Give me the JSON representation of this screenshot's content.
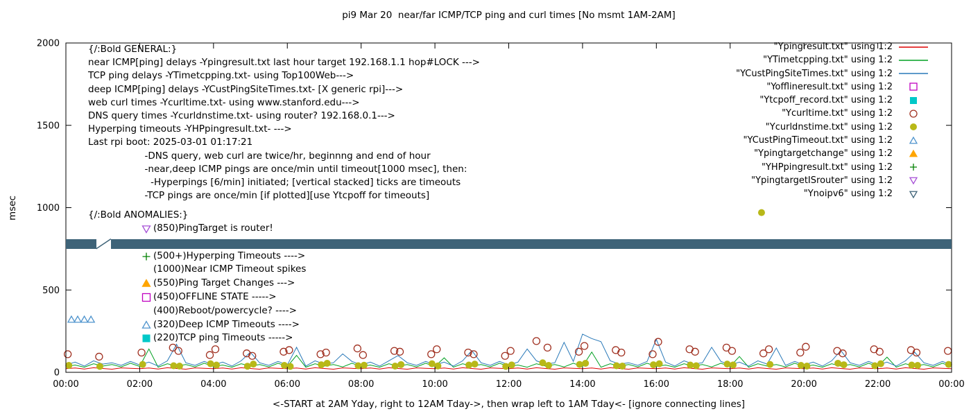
{
  "chart_data": {
    "type": "line",
    "title": "pi9 Mar 20  near/far ICMP/TCP ping and curl times [No msmt 1AM-2AM]",
    "xlabel": "<-START at 2AM Yday, right to 12AM Tday->, then wrap left to 1AM Tday<- [ignore connecting lines]",
    "ylabel": "msec",
    "x_range": [
      0,
      24
    ],
    "y_range": [
      0,
      2000
    ],
    "y_ticks": [
      0,
      500,
      1000,
      1500,
      2000
    ],
    "x_ticks": {
      "values": [
        0,
        2,
        4,
        6,
        8,
        10,
        12,
        14,
        16,
        18,
        20,
        22,
        24
      ],
      "labels": [
        "00:00",
        "02:00",
        "04:00",
        "06:00",
        "08:00",
        "10:00",
        "12:00",
        "14:00",
        "16:00",
        "18:00",
        "20:00",
        "22:00",
        "00:00"
      ]
    },
    "legend_position": "top-right",
    "series": [
      {
        "label": "\"Ypingresult.txt\" using 1:2",
        "type": "line",
        "color": "#dd0000",
        "values": [
          22,
          26,
          20,
          28,
          23,
          19,
          27,
          24,
          22,
          26,
          20,
          28,
          23,
          19,
          27,
          24,
          22,
          26,
          20,
          28,
          23,
          19,
          27,
          24,
          22,
          26,
          20,
          28,
          23,
          19,
          27,
          24,
          22,
          26,
          20,
          28,
          23,
          19,
          27,
          24,
          22,
          26,
          20,
          28,
          23,
          19,
          27,
          24,
          22,
          26,
          20,
          28,
          23,
          19,
          27,
          24,
          22,
          26,
          20,
          28,
          23,
          19,
          27,
          24,
          22,
          26,
          20,
          28,
          23,
          19,
          27,
          24,
          22,
          26,
          20,
          28,
          23,
          19,
          27,
          24,
          22,
          26,
          20,
          28,
          23,
          19,
          27,
          24,
          22,
          26,
          20,
          28,
          23,
          19,
          27,
          24,
          22
        ]
      },
      {
        "label": "\"YTimetcpping.txt\" using 1:2",
        "type": "line",
        "color": "#00a020",
        "values": [
          36,
          44,
          31,
          52,
          38,
          47,
          33,
          55,
          36,
          142,
          31,
          52,
          38,
          47,
          33,
          55,
          36,
          44,
          31,
          52,
          38,
          47,
          33,
          55,
          36,
          103,
          31,
          52,
          38,
          47,
          33,
          55,
          36,
          44,
          31,
          52,
          38,
          47,
          33,
          55,
          36,
          88,
          31,
          52,
          38,
          47,
          33,
          55,
          36,
          44,
          31,
          52,
          38,
          47,
          33,
          55,
          36,
          123,
          31,
          52,
          38,
          47,
          33,
          55,
          36,
          44,
          31,
          52,
          38,
          47,
          33,
          55,
          36,
          96,
          31,
          52,
          38,
          47,
          33,
          55,
          36,
          44,
          31,
          52,
          38,
          47,
          33,
          55,
          36,
          92,
          31,
          52,
          38,
          47,
          33,
          55,
          36
        ]
      },
      {
        "label": "\"YCustPingSiteTimes.txt\" using 1:2",
        "type": "line",
        "color": "#2878b8",
        "values": [
          45,
          62,
          38,
          70,
          50,
          58,
          42,
          66,
          45,
          62,
          38,
          70,
          170,
          58,
          42,
          66,
          45,
          62,
          38,
          70,
          122,
          58,
          42,
          66,
          45,
          152,
          38,
          70,
          50,
          58,
          112,
          66,
          45,
          62,
          38,
          70,
          102,
          58,
          42,
          66,
          45,
          62,
          38,
          70,
          132,
          58,
          42,
          66,
          45,
          62,
          142,
          70,
          50,
          58,
          182,
          66,
          232,
          205,
          186,
          70,
          50,
          58,
          42,
          66,
          200,
          62,
          38,
          70,
          50,
          58,
          152,
          66,
          45,
          62,
          38,
          70,
          50,
          148,
          42,
          66,
          45,
          62,
          38,
          70,
          132,
          58,
          42,
          66,
          45,
          62,
          38,
          70,
          122,
          58,
          42,
          66,
          45
        ]
      },
      {
        "label": "\"Yofflineresult.txt\" using 1:2",
        "type": "scatter",
        "marker": "square-open",
        "color": "#c000c0",
        "points": []
      },
      {
        "label": "\"Ytcpoff_record.txt\" using 1:2",
        "type": "scatter",
        "marker": "square-filled",
        "color": "#00c8c8",
        "points": []
      },
      {
        "label": "\"Ycurltime.txt\" using 1:2",
        "type": "scatter",
        "marker": "circle-open",
        "color": "#a03020",
        "points": [
          [
            0.05,
            110
          ],
          [
            0.9,
            95
          ],
          [
            2.05,
            120
          ],
          [
            2.9,
            150
          ],
          [
            3.05,
            130
          ],
          [
            3.9,
            105
          ],
          [
            4.05,
            140
          ],
          [
            4.9,
            115
          ],
          [
            5.05,
            100
          ],
          [
            5.9,
            125
          ],
          [
            6.05,
            135
          ],
          [
            6.9,
            110
          ],
          [
            7.05,
            120
          ],
          [
            7.9,
            145
          ],
          [
            8.05,
            105
          ],
          [
            8.9,
            130
          ],
          [
            9.05,
            125
          ],
          [
            9.9,
            110
          ],
          [
            10.05,
            140
          ],
          [
            10.9,
            120
          ],
          [
            11.05,
            110
          ],
          [
            11.9,
            100
          ],
          [
            12.05,
            130
          ],
          [
            12.75,
            190
          ],
          [
            13.05,
            150
          ],
          [
            13.9,
            125
          ],
          [
            14.05,
            160
          ],
          [
            14.9,
            135
          ],
          [
            15.05,
            120
          ],
          [
            15.9,
            110
          ],
          [
            16.05,
            185
          ],
          [
            16.9,
            140
          ],
          [
            17.05,
            125
          ],
          [
            17.9,
            150
          ],
          [
            18.05,
            130
          ],
          [
            18.9,
            115
          ],
          [
            19.05,
            140
          ],
          [
            19.9,
            120
          ],
          [
            20.05,
            155
          ],
          [
            20.9,
            130
          ],
          [
            21.05,
            115
          ],
          [
            21.9,
            140
          ],
          [
            22.05,
            125
          ],
          [
            22.9,
            135
          ],
          [
            23.05,
            120
          ],
          [
            23.9,
            130
          ]
        ]
      },
      {
        "label": "\"Ycurldnstime.txt\" using 1:2",
        "type": "scatter",
        "marker": "circle-filled",
        "color": "#b8b818",
        "points": [
          [
            0.08,
            42
          ],
          [
            0.92,
            36
          ],
          [
            2.08,
            48
          ],
          [
            2.92,
            40
          ],
          [
            3.08,
            38
          ],
          [
            3.92,
            52
          ],
          [
            4.08,
            44
          ],
          [
            4.92,
            37
          ],
          [
            5.08,
            50
          ],
          [
            5.92,
            42
          ],
          [
            6.08,
            36
          ],
          [
            6.92,
            46
          ],
          [
            7.08,
            55
          ],
          [
            7.92,
            40
          ],
          [
            8.08,
            43
          ],
          [
            8.92,
            38
          ],
          [
            9.08,
            47
          ],
          [
            9.92,
            52
          ],
          [
            10.08,
            39
          ],
          [
            10.92,
            44
          ],
          [
            11.08,
            50
          ],
          [
            11.92,
            36
          ],
          [
            12.08,
            45
          ],
          [
            12.92,
            58
          ],
          [
            13.08,
            42
          ],
          [
            13.92,
            48
          ],
          [
            14.08,
            55
          ],
          [
            14.92,
            40
          ],
          [
            15.08,
            38
          ],
          [
            15.92,
            46
          ],
          [
            16.08,
            52
          ],
          [
            16.92,
            44
          ],
          [
            17.08,
            40
          ],
          [
            17.92,
            50
          ],
          [
            18.08,
            45
          ],
          [
            18.85,
            970
          ],
          [
            19.08,
            48
          ],
          [
            19.92,
            42
          ],
          [
            20.08,
            38
          ],
          [
            20.92,
            55
          ],
          [
            21.08,
            46
          ],
          [
            21.92,
            40
          ],
          [
            22.08,
            52
          ],
          [
            22.92,
            44
          ],
          [
            23.08,
            42
          ],
          [
            23.92,
            48
          ]
        ]
      },
      {
        "label": "\"YCustPingTimeout.txt\" using 1:2",
        "type": "scatter",
        "marker": "triangle-up-open",
        "color": "#4f94cd",
        "points": [
          [
            0.15,
            320
          ],
          [
            0.32,
            320
          ],
          [
            0.5,
            320
          ],
          [
            0.68,
            320
          ]
        ]
      },
      {
        "label": "\"Ypingtargetchange\" using 1:2",
        "type": "scatter",
        "marker": "triangle-up-filled",
        "color": "#ffa500",
        "points": []
      },
      {
        "label": "\"YHPpingresult.txt\" using 1:2",
        "type": "scatter",
        "marker": "plus",
        "color": "#008000",
        "points": []
      },
      {
        "label": "\"YpingtargetISrouter\" using 1:2",
        "type": "scatter",
        "marker": "triangle-down-open",
        "color": "#a64fd6",
        "points": []
      },
      {
        "label": "\"Ynoipv6\" using 1:2",
        "type": "band",
        "marker": "triangle-down-open",
        "color": "#3e6378",
        "band": {
          "y": [
            750,
            810
          ],
          "segments": [
            [
              0,
              0.82
            ],
            [
              1.22,
              24
            ]
          ]
        }
      }
    ],
    "annotations": {
      "general": {
        "x": 127,
        "y": 64,
        "line_height": 19.2,
        "lines": [
          "{/:Bold GENERAL:}",
          "near ICMP[ping] delays -Ypingresult.txt last hour target 192.168.1.1 hop#LOCK --->",
          "TCP ping delays -YTimetcpping.txt- using Top100Web--->",
          "deep ICMP[ping] delays -YCustPingSiteTimes.txt- [X generic rpi]--->",
          "web curl times -Ycurltime.txt- using www.stanford.edu--->",
          "DNS query times -Ycurldnstime.txt- using router? 192.168.0.1--->",
          "Hyperping timeouts -YHPpingresult.txt- --->",
          "Last rpi boot: 2025-03-01 01:17:21",
          "                   -DNS query, web curl are twice/hr, beginnng and end of hour",
          "                   -near,deep ICMP pings are once/min until timeout[1000 msec], then:",
          "                     -Hyperpings [6/min] initiated; [vertical stacked] ticks are timeouts",
          "                   -TCP pings are once/min [if plotted][use Ytcpoff for timeouts]"
        ]
      },
      "anomalies": {
        "x": 127,
        "y": 303,
        "line_height": 19.8,
        "indent": 76,
        "header": "{/:Bold ANOMALIES:}",
        "lines": [
          {
            "marker": "triangle-down-open",
            "color": "#a64fd6",
            "text": "(850)PingTarget is router!"
          },
          {
            "marker": "none",
            "color": "#000000",
            "text": ""
          },
          {
            "marker": "plus",
            "color": "#008000",
            "text": "(500+)Hyperping Timeouts ---->"
          },
          {
            "marker": "none",
            "color": "#000000",
            "text": "(1000)Near ICMP Timeout spikes"
          },
          {
            "marker": "triangle-up-filled",
            "color": "#ffa500",
            "text": "(550)Ping Target Changes --->"
          },
          {
            "marker": "square-open",
            "color": "#c000c0",
            "text": "(450)OFFLINE STATE ----->"
          },
          {
            "marker": "none",
            "color": "#000000",
            "text": "(400)Reboot/powercycle? ---->"
          },
          {
            "marker": "triangle-up-open",
            "color": "#4f94cd",
            "text": "(320)Deep ICMP Timeouts ---->"
          },
          {
            "marker": "square-filled",
            "color": "#00c8c8",
            "text": "(220)TCP ping Timeouts ----->"
          }
        ]
      }
    }
  }
}
